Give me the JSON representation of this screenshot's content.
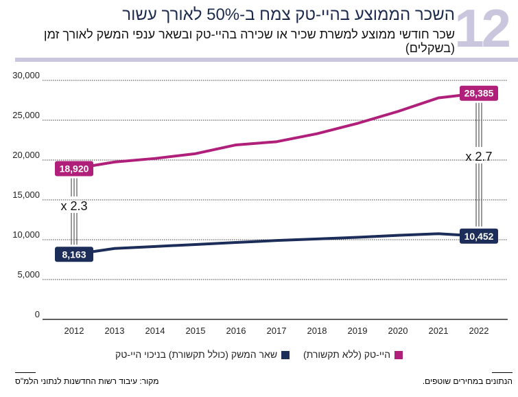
{
  "chart_number": "12",
  "chart_data": {
    "type": "line",
    "title": "השכר הממוצע בהיי-טק צמח ב-50% לאורך עשור",
    "subtitle": "שכר חודשי ממוצע למשרת שכיר או שכירה בהיי-טק ובשאר ענפי המשק לאורך זמן (בשקלים)",
    "x": [
      2012,
      2013,
      2014,
      2015,
      2016,
      2017,
      2018,
      2019,
      2020,
      2021,
      2022
    ],
    "ylim": [
      0,
      30000
    ],
    "yticks": [
      "0",
      "5,000",
      "10,000",
      "15,000",
      "20,000",
      "25,000",
      "30,000"
    ],
    "ytick_values": [
      0,
      5000,
      10000,
      15000,
      20000,
      25000,
      30000
    ],
    "grid": true,
    "legend_position": "bottom",
    "series": [
      {
        "name": "היי-טק (ללא תקשורת)",
        "color": "#b01f7a",
        "values": [
          18920,
          19750,
          20200,
          20800,
          21900,
          22300,
          23300,
          24600,
          26100,
          27800,
          28385
        ],
        "start_label": "18,920",
        "end_label": "28,385"
      },
      {
        "name": "שאר המשק (כולל תקשורת) בניכוי היי-טק",
        "color": "#1b2d58",
        "values": [
          8163,
          8900,
          9150,
          9400,
          9650,
          9900,
          10100,
          10300,
          10550,
          10750,
          10452
        ],
        "start_label": "8,163",
        "end_label": "10,452"
      }
    ],
    "annotations": [
      "x 2.3",
      "x 2.7"
    ]
  },
  "footer": {
    "note": "הנתונים במחירים שוטפים.",
    "source": "מקור: עיבוד רשות החדשנות לנתוני הלמ\"ס"
  }
}
